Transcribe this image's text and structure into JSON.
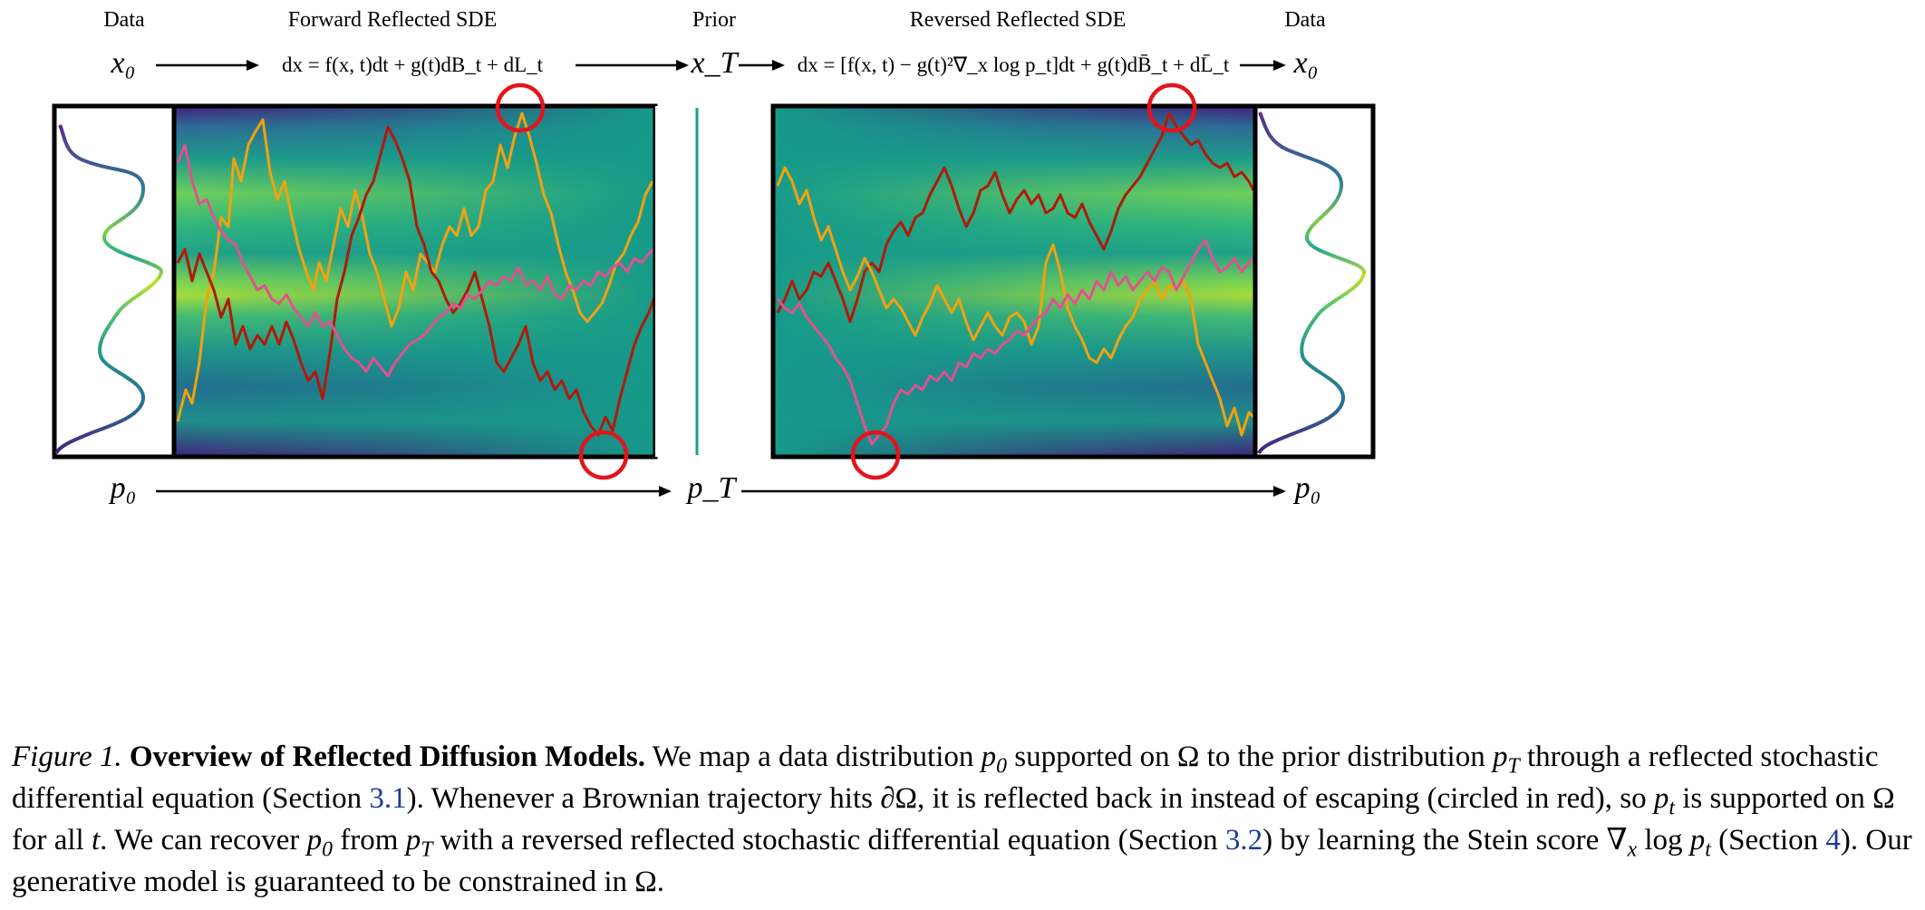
{
  "figure": {
    "top_labels": {
      "data_left": "Data",
      "forward": "Forward Reflected SDE",
      "prior": "Prior",
      "reversed": "Reversed Reflected SDE",
      "data_right": "Data"
    },
    "equations": {
      "x0_left": "x₀",
      "forward_sde": "dx = f(x, t)dt + g(t)dB_t + dL_t",
      "xT": "x_T",
      "reversed_sde": "dx = [f(x, t) − g(t)²∇_x log p_t]dt + g(t)dB̄_t + dL̄_t",
      "x0_right": "x₀"
    },
    "bottom_labels": {
      "p0_left": "p₀",
      "pT": "p_T",
      "p0_right": "p₀"
    },
    "colors": {
      "trajectory_dark_red": "#b01a0a",
      "trajectory_orange": "#f2a20f",
      "trajectory_pink": "#e0528f",
      "reflection_circle": "#e3141c",
      "prior_line": "#16a28a"
    },
    "annotations": [
      "reflection circled in red (4 instances)"
    ]
  },
  "caption": {
    "figure_label": "Figure 1.",
    "title": "Overview of Reflected Diffusion Models.",
    "t1": " We map a data distribution ",
    "m_p": "p",
    "m_0": "0",
    "t2": " supported on Ω to the prior distribution ",
    "m_T": "T",
    "t3": " through a reflected stochastic differential equation (Section ",
    "ref_31": "3.1",
    "t4": "). Whenever a Brownian trajectory hits ∂Ω, it is reflected back in instead of escaping (circled in red), so ",
    "m_t": "t",
    "t5": " is supported on Ω for all ",
    "t6": ". We can recover ",
    "t7": " from ",
    "t8": " with a reversed reflected stochastic differential equation (Section ",
    "ref_32": "3.2",
    "t9": ") by learning the Stein score ∇",
    "m_x": "x",
    "t10": " log ",
    "t11": " (Section ",
    "ref_4": "4",
    "t12": "). Our generative model is guaranteed to be constrained in Ω."
  }
}
